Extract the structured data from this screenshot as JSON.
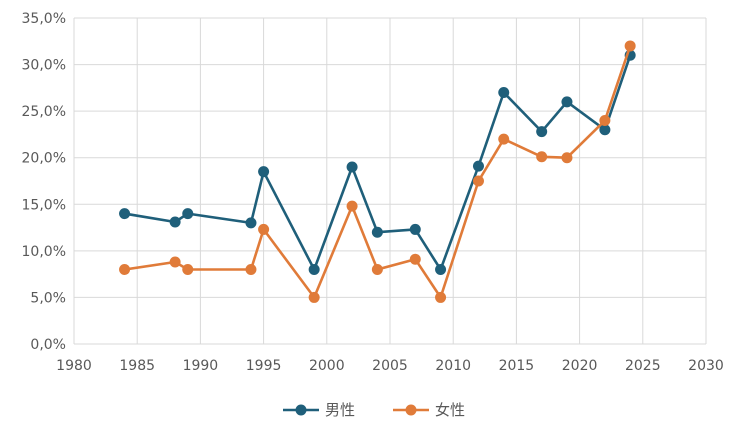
{
  "chart_data": {
    "type": "line",
    "title": "",
    "xlabel": "",
    "ylabel": "",
    "xlim": [
      1980,
      2030
    ],
    "ylim": [
      0,
      35
    ],
    "x_ticks": [
      "1980",
      "1985",
      "1990",
      "1995",
      "2000",
      "2005",
      "2010",
      "2015",
      "2020",
      "2025",
      "2030"
    ],
    "y_ticks": [
      "0,0%",
      "5,0%",
      "10,0%",
      "15,0%",
      "20,0%",
      "25,0%",
      "30,0%",
      "35,0%"
    ],
    "grid": true,
    "legend_position": "bottom",
    "series": [
      {
        "name": "男性",
        "color": "#1f5f7a",
        "x": [
          1984,
          1988,
          1989,
          1994,
          1995,
          1999,
          2002,
          2004,
          2007,
          2009,
          2012,
          2014,
          2017,
          2019,
          2022,
          2024
        ],
        "values": [
          14.0,
          13.1,
          14.0,
          13.0,
          18.5,
          8.0,
          19.0,
          12.0,
          12.3,
          8.0,
          19.1,
          27.0,
          22.8,
          26.0,
          23.0,
          31.0
        ]
      },
      {
        "name": "女性",
        "color": "#e07b39",
        "x": [
          1984,
          1988,
          1989,
          1994,
          1995,
          1999,
          2002,
          2004,
          2007,
          2009,
          2012,
          2014,
          2017,
          2019,
          2022,
          2024
        ],
        "values": [
          8.0,
          8.8,
          8.0,
          8.0,
          12.3,
          5.0,
          14.8,
          8.0,
          9.1,
          5.0,
          17.5,
          22.0,
          20.1,
          20.0,
          24.0,
          32.0
        ]
      }
    ]
  }
}
